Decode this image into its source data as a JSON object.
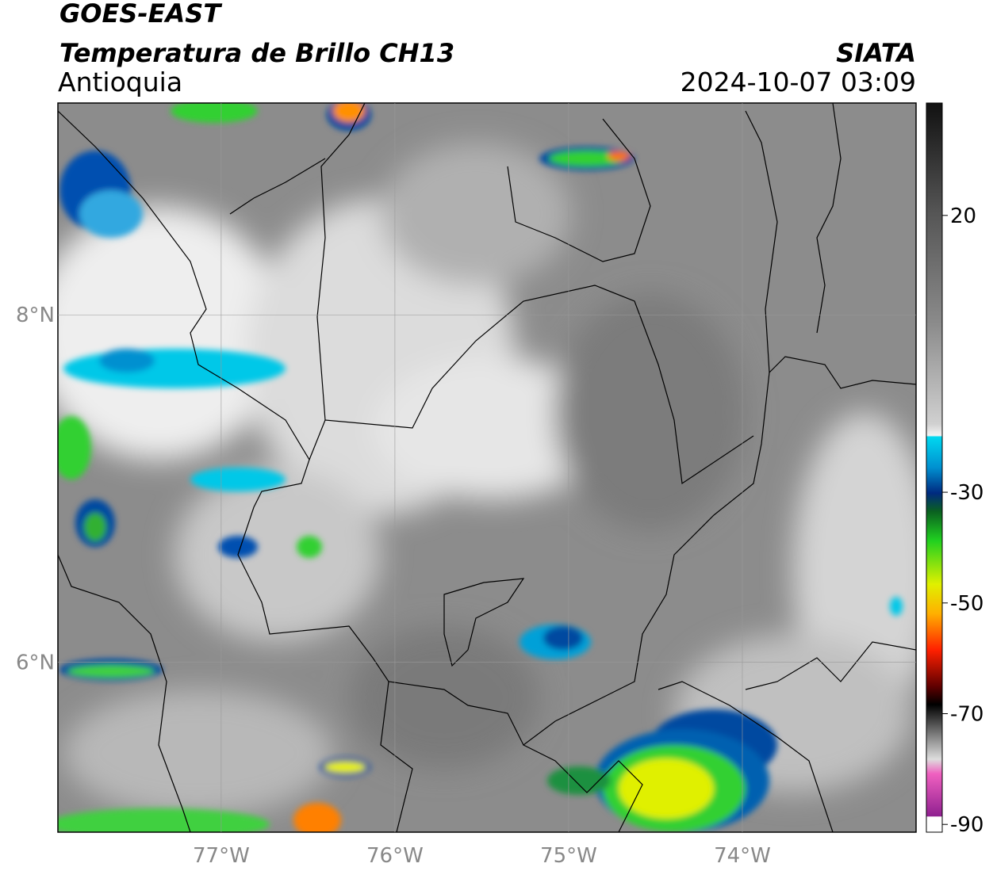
{
  "chart_data": {
    "type": "map",
    "title": "GOES-EAST",
    "subtitle": "Temperatura de Brillo CH13",
    "region": "Antioquia",
    "source": "SIATA",
    "timestamp": "2024-10-07 03:09",
    "xlim": [
      -77.94,
      -73.0
    ],
    "ylim": [
      5.02,
      9.22
    ],
    "xticks": [
      {
        "value": -77,
        "label": "77°W"
      },
      {
        "value": -76,
        "label": "76°W"
      },
      {
        "value": -75,
        "label": "75°W"
      },
      {
        "value": -74,
        "label": "74°W"
      }
    ],
    "yticks": [
      {
        "value": 6,
        "label": "6°N"
      },
      {
        "value": 8,
        "label": "8°N"
      }
    ],
    "grid": true,
    "colorbar": {
      "clim": [
        -91.4,
        40.3
      ],
      "ticks": [
        20,
        -30,
        -50,
        -70,
        -90
      ]
    }
  }
}
